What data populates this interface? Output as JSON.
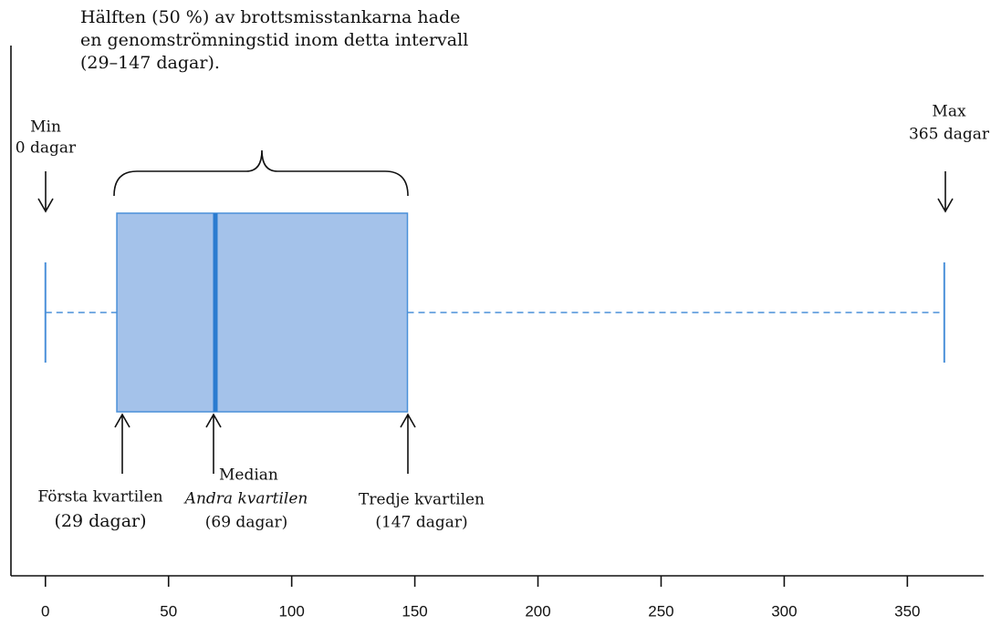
{
  "chart_data": {
    "type": "box",
    "min": 0,
    "q1": 29,
    "median": 69,
    "q3": 147,
    "max": 365,
    "xlim": [
      -14,
      381
    ],
    "xticks": [
      0,
      50,
      100,
      150,
      200,
      250,
      300,
      350
    ],
    "color": "#a4c2ea",
    "edge_color": "#4a90d9",
    "median_color": "#2a7bd0",
    "annotations": {
      "half": [
        "Hälften (50 %) av brottsmisstankarna hade",
        "en genomströmningstid inom detta intervall",
        "(29–147 dagar)."
      ],
      "min": [
        "Min",
        "0 dagar"
      ],
      "max": [
        "Max",
        "365 dagar"
      ],
      "q1": [
        "Första kvartilen",
        "(29 dagar)"
      ],
      "median": [
        "Median",
        "Andra kvartilen",
        "(69 dagar)"
      ],
      "q3": [
        "Tredje kvartilen",
        "(147 dagar)"
      ]
    }
  }
}
